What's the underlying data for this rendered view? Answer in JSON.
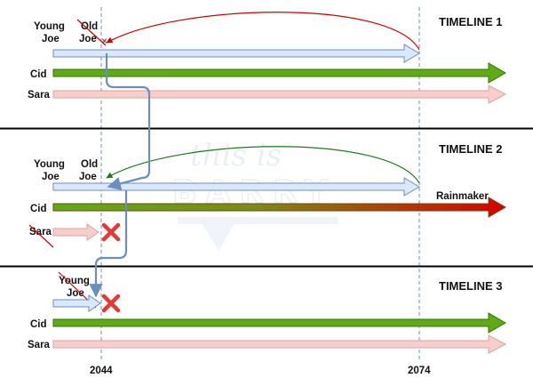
{
  "watermark": {
    "line1": "this is",
    "line2": "BARRY"
  },
  "timelines": [
    {
      "title": "TIMELINE 1",
      "joe": {
        "young": [
          "Young",
          "Joe"
        ],
        "old": [
          "Old",
          "Joe"
        ]
      },
      "cid": "Cid",
      "sara": "Sara"
    },
    {
      "title": "TIMELINE 2",
      "joe": {
        "young": [
          "Young",
          "Joe"
        ],
        "old": [
          "Old",
          "Joe"
        ]
      },
      "cid": "Cid",
      "cid_end": "Rainmaker",
      "sara": "Sara"
    },
    {
      "title": "TIMELINE 3",
      "joe": {
        "young": [
          "Young",
          "Joe"
        ]
      },
      "cid": "Cid",
      "sara": "Sara"
    }
  ],
  "years": [
    "2044",
    "2074"
  ],
  "colors": {
    "joe_fill": "#dae8fc",
    "joe_stroke": "#6c8ebf",
    "cid_fill": "#60a917",
    "cid_stroke": "#2d7600",
    "rainmaker_fill": "#d80000",
    "sara_fill": "#f8cecc",
    "sara_stroke": "#dba3a0",
    "jump_line": "#6c8ebf",
    "loop_t1": "#cc0000",
    "loop_t2": "#1e7a1e",
    "cross": "#e53935",
    "divider": "#000000",
    "guide": "#6c8ebf"
  }
}
